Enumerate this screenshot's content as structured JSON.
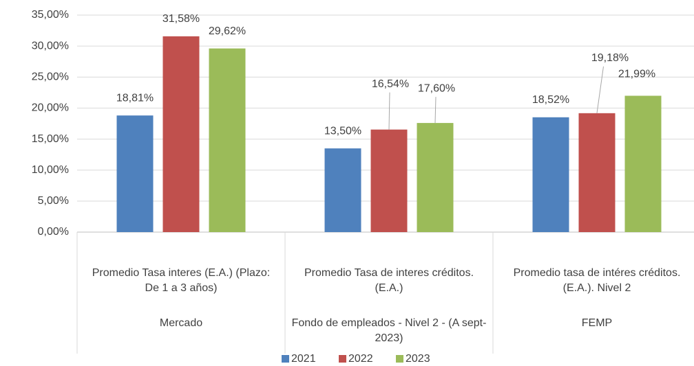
{
  "chart_data": {
    "type": "bar",
    "categories": [
      "Promedio Tasa interes (E.A.) (Plazo: De 1 a 3 años)",
      "Promedio Tasa de interes créditos. (E.A.)",
      "Promedio tasa de intéres créditos. (E.A.). Nivel 2"
    ],
    "groups": [
      "Mercado",
      "Fondo de empleados - Nivel 2 - (A sept-2023)",
      "FEMP"
    ],
    "series": [
      {
        "name": "2021",
        "color": "#4f81bd",
        "values": [
          18.81,
          13.5,
          18.52
        ],
        "value_labels": [
          "18,81%",
          "13,50%",
          "18,52%"
        ]
      },
      {
        "name": "2022",
        "color": "#c0504d",
        "values": [
          31.58,
          16.54,
          19.18
        ],
        "value_labels": [
          "31,58%",
          "16,54%",
          "19,18%"
        ]
      },
      {
        "name": "2023",
        "color": "#9bbb59",
        "values": [
          29.62,
          17.6,
          21.99
        ],
        "value_labels": [
          "29,62%",
          "17,60%",
          "21,99%"
        ]
      }
    ],
    "ylim": [
      0,
      35
    ],
    "yticks": [
      {
        "value": 0,
        "label": "0,00%"
      },
      {
        "value": 5,
        "label": "5,00%"
      },
      {
        "value": 10,
        "label": "10,00%"
      },
      {
        "value": 15,
        "label": "15,00%"
      },
      {
        "value": 20,
        "label": "20,00%"
      },
      {
        "value": 25,
        "label": "25,00%"
      },
      {
        "value": 30,
        "label": "30,00%"
      },
      {
        "value": 35,
        "label": "35,00%"
      }
    ],
    "grid": true,
    "legend": "bottom"
  }
}
